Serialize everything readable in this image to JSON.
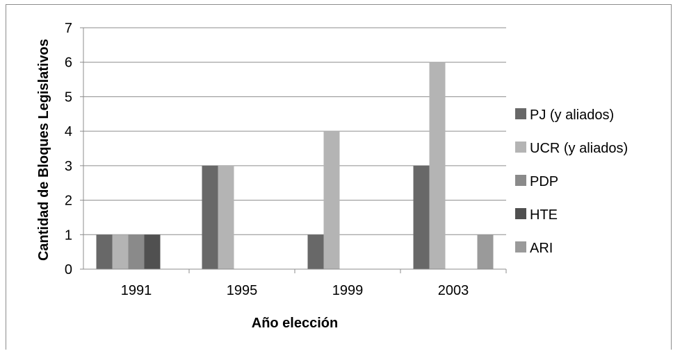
{
  "chart_data": {
    "type": "bar",
    "title": "",
    "xlabel": "Año elección",
    "ylabel": "Cantidad de Bloques Legislativos",
    "categories": [
      "1991",
      "1995",
      "1999",
      "2003"
    ],
    "ylim": [
      0,
      7
    ],
    "yticks": [
      "0",
      "1",
      "2",
      "3",
      "4",
      "5",
      "6",
      "7"
    ],
    "grid": true,
    "legend_position": "right",
    "series": [
      {
        "name": "PJ (y aliados)",
        "color": "#686868",
        "values": [
          1,
          3,
          1,
          3
        ]
      },
      {
        "name": "UCR (y aliados)",
        "color": "#b4b4b4",
        "values": [
          1,
          3,
          4,
          6
        ]
      },
      {
        "name": "PDP",
        "color": "#8a8a8a",
        "values": [
          1,
          0,
          0,
          0
        ]
      },
      {
        "name": "HTE",
        "color": "#505050",
        "values": [
          1,
          0,
          0,
          0
        ]
      },
      {
        "name": "ARI",
        "color": "#9a9a9a",
        "values": [
          0,
          0,
          0,
          1
        ]
      }
    ]
  }
}
